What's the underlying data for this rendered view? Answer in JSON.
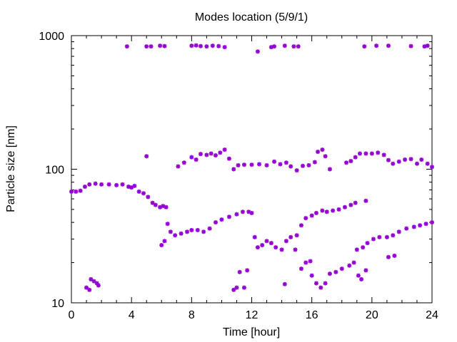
{
  "chart_data": {
    "type": "scatter",
    "title": "Modes location (5/9/1)",
    "xlabel": "Time [hour]",
    "ylabel": "Particle size [nm]",
    "xlim": [
      0,
      24
    ],
    "ylim": [
      10,
      1000
    ],
    "yscale": "log",
    "grid": false,
    "legend": "none",
    "color": "#9400d3",
    "marker": "asterisk",
    "x_ticks": [
      0,
      4,
      8,
      12,
      16,
      20,
      24
    ],
    "x_tick_labels": [
      "0",
      "4",
      "8",
      "12",
      "16",
      "20",
      "24"
    ],
    "y_ticks": [
      10,
      100,
      1000
    ],
    "y_tick_labels": [
      "10",
      "100",
      "1000"
    ],
    "series": [
      {
        "points": [
          [
            3.7,
            830
          ],
          [
            5.0,
            830
          ],
          [
            5.3,
            830
          ],
          [
            5.9,
            840
          ],
          [
            6.2,
            835
          ],
          [
            8.0,
            840
          ],
          [
            8.3,
            845
          ],
          [
            8.6,
            835
          ],
          [
            9.0,
            830
          ],
          [
            9.4,
            840
          ],
          [
            9.8,
            835
          ],
          [
            10.2,
            820
          ],
          [
            12.4,
            760
          ],
          [
            13.3,
            820
          ],
          [
            13.5,
            830
          ],
          [
            14.2,
            840
          ],
          [
            14.8,
            830
          ],
          [
            15.1,
            830
          ],
          [
            19.5,
            830
          ],
          [
            20.3,
            840
          ],
          [
            21.1,
            840
          ],
          [
            22.6,
            835
          ],
          [
            23.5,
            830
          ],
          [
            23.7,
            840
          ],
          [
            0.0,
            68
          ],
          [
            0.3,
            68
          ],
          [
            0.6,
            69
          ],
          [
            0.9,
            74
          ],
          [
            1.2,
            77
          ],
          [
            1.6,
            78
          ],
          [
            2.0,
            77
          ],
          [
            2.5,
            77
          ],
          [
            3.0,
            76
          ],
          [
            3.4,
            77
          ],
          [
            3.8,
            74
          ],
          [
            4.0,
            73
          ],
          [
            4.2,
            75
          ],
          [
            4.5,
            68
          ],
          [
            4.8,
            66
          ],
          [
            5.1,
            62
          ],
          [
            5.4,
            56
          ],
          [
            5.6,
            54
          ],
          [
            5.9,
            52
          ],
          [
            6.1,
            53
          ],
          [
            6.3,
            52
          ],
          [
            6.0,
            27
          ],
          [
            6.2,
            29
          ],
          [
            6.4,
            39
          ],
          [
            6.6,
            34
          ],
          [
            6.9,
            32
          ],
          [
            7.3,
            33
          ],
          [
            7.7,
            34
          ],
          [
            8.0,
            35
          ],
          [
            8.4,
            35
          ],
          [
            8.8,
            34
          ],
          [
            9.2,
            36
          ],
          [
            9.6,
            40
          ],
          [
            10.0,
            42
          ],
          [
            10.5,
            44
          ],
          [
            11.0,
            46
          ],
          [
            11.4,
            48
          ],
          [
            11.8,
            48
          ],
          [
            12.0,
            47
          ],
          [
            12.2,
            31
          ],
          [
            12.4,
            26
          ],
          [
            12.7,
            27
          ],
          [
            13.0,
            29
          ],
          [
            13.3,
            28
          ],
          [
            13.6,
            26
          ],
          [
            14.0,
            25
          ],
          [
            14.3,
            29
          ],
          [
            14.6,
            31
          ],
          [
            15.0,
            32
          ],
          [
            15.3,
            38
          ],
          [
            15.6,
            43
          ],
          [
            16.0,
            45
          ],
          [
            16.3,
            47
          ],
          [
            16.7,
            49
          ],
          [
            17.0,
            48
          ],
          [
            17.4,
            49
          ],
          [
            17.8,
            50
          ],
          [
            18.2,
            52
          ],
          [
            18.6,
            54
          ],
          [
            18.9,
            56
          ],
          [
            19.6,
            58
          ],
          [
            19.0,
            25
          ],
          [
            19.4,
            26
          ],
          [
            19.7,
            28
          ],
          [
            20.1,
            30
          ],
          [
            20.5,
            31
          ],
          [
            21.0,
            31
          ],
          [
            21.4,
            32
          ],
          [
            21.8,
            34
          ],
          [
            22.3,
            36
          ],
          [
            22.8,
            37
          ],
          [
            23.2,
            38
          ],
          [
            23.6,
            39
          ],
          [
            24.0,
            40
          ],
          [
            5.0,
            125
          ],
          [
            7.1,
            105
          ],
          [
            7.5,
            112
          ],
          [
            8.0,
            123
          ],
          [
            8.3,
            118
          ],
          [
            8.6,
            130
          ],
          [
            9.0,
            128
          ],
          [
            9.3,
            131
          ],
          [
            9.6,
            127
          ],
          [
            9.9,
            133
          ],
          [
            10.2,
            140
          ],
          [
            10.5,
            120
          ],
          [
            10.8,
            100
          ],
          [
            11.1,
            107
          ],
          [
            11.5,
            108
          ],
          [
            12.0,
            108
          ],
          [
            12.5,
            109
          ],
          [
            13.0,
            107
          ],
          [
            13.5,
            114
          ],
          [
            13.9,
            109
          ],
          [
            14.3,
            112
          ],
          [
            14.6,
            105
          ],
          [
            15.0,
            98
          ],
          [
            15.4,
            106
          ],
          [
            15.8,
            107
          ],
          [
            16.2,
            113
          ],
          [
            16.4,
            135
          ],
          [
            16.7,
            140
          ],
          [
            16.9,
            125
          ],
          [
            17.2,
            100
          ],
          [
            18.3,
            112
          ],
          [
            18.6,
            115
          ],
          [
            18.9,
            123
          ],
          [
            19.2,
            131
          ],
          [
            19.6,
            131
          ],
          [
            20.0,
            131
          ],
          [
            20.4,
            133
          ],
          [
            20.8,
            128
          ],
          [
            21.1,
            117
          ],
          [
            21.4,
            110
          ],
          [
            21.8,
            114
          ],
          [
            22.2,
            118
          ],
          [
            22.6,
            119
          ],
          [
            23.0,
            110
          ],
          [
            23.3,
            118
          ],
          [
            23.7,
            110
          ],
          [
            24.0,
            104
          ],
          [
            1.0,
            13
          ],
          [
            1.2,
            12.5
          ],
          [
            1.3,
            15
          ],
          [
            1.5,
            14.5
          ],
          [
            1.7,
            14
          ],
          [
            1.8,
            13.5
          ],
          [
            10.8,
            12.5
          ],
          [
            11.0,
            13
          ],
          [
            11.2,
            17
          ],
          [
            11.5,
            13
          ],
          [
            11.7,
            17.5
          ],
          [
            14.2,
            13.8
          ],
          [
            14.9,
            25
          ],
          [
            15.3,
            18
          ],
          [
            15.6,
            20
          ],
          [
            15.9,
            20.5
          ],
          [
            16.0,
            16
          ],
          [
            16.3,
            14
          ],
          [
            16.6,
            13
          ],
          [
            16.9,
            14
          ],
          [
            17.2,
            16.5
          ],
          [
            17.6,
            17
          ],
          [
            18.0,
            18
          ],
          [
            18.5,
            19
          ],
          [
            18.8,
            20
          ],
          [
            19.1,
            16
          ],
          [
            19.3,
            15
          ],
          [
            19.6,
            17.5
          ],
          [
            21.1,
            22
          ],
          [
            21.5,
            22.5
          ]
        ]
      }
    ]
  }
}
